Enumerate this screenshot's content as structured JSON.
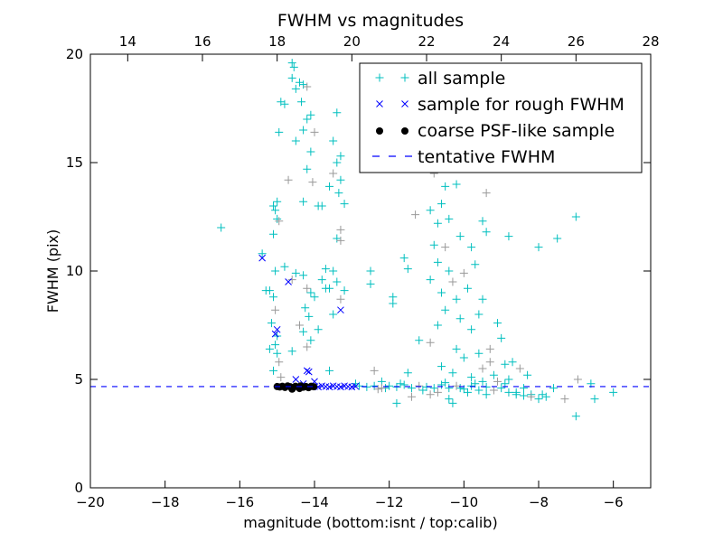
{
  "chart_data": {
    "type": "scatter",
    "title": "FWHM vs magnitudes",
    "xlabel": "magnitude (bottom:isnt / top:calib)",
    "ylabel": "FWHM (pix)",
    "xlim": [
      -20,
      -5
    ],
    "ylim": [
      0,
      20
    ],
    "top_xlim": [
      13,
      28
    ],
    "x_ticks": [
      -20,
      -18,
      -16,
      -14,
      -12,
      -10,
      -8,
      -6
    ],
    "x_tick_labels": [
      "−20",
      "−18",
      "−16",
      "−14",
      "−12",
      "−10",
      "−8",
      "−6"
    ],
    "top_x_ticks": [
      14,
      16,
      18,
      20,
      22,
      24,
      26,
      28
    ],
    "top_x_tick_labels": [
      "14",
      "16",
      "18",
      "20",
      "22",
      "24",
      "26",
      "28"
    ],
    "y_ticks": [
      0,
      5,
      10,
      15,
      20
    ],
    "y_tick_labels": [
      "0",
      "5",
      "10",
      "15",
      "20"
    ],
    "grid": false,
    "legend_position": "top-right",
    "colors": {
      "all": "#00bfbf",
      "rough": "#0000ff",
      "coarse": "#000000",
      "tentative": "#0000ff"
    },
    "series": [
      {
        "name": "all sample",
        "marker": "plus",
        "points": [
          [
            -15.1,
            13
          ],
          [
            -15.05,
            12.8
          ],
          [
            -15,
            12.4
          ],
          [
            -14.95,
            12.3
          ],
          [
            -15.1,
            11.7
          ],
          [
            -15.05,
            10
          ],
          [
            -15.2,
            9.1
          ],
          [
            -15.1,
            8.8
          ],
          [
            -15.05,
            8.2
          ],
          [
            -15.15,
            7.6
          ],
          [
            -15,
            7
          ],
          [
            -15.05,
            6.6
          ],
          [
            -15,
            6.2
          ],
          [
            -14.95,
            5.8
          ],
          [
            -15.1,
            5.4
          ],
          [
            -15.2,
            6.4
          ],
          [
            -15.3,
            9.1
          ],
          [
            -15.4,
            10.8
          ],
          [
            -14.9,
            5.1
          ],
          [
            -15,
            13.2
          ],
          [
            -14.9,
            17.8
          ],
          [
            -14.8,
            17.7
          ],
          [
            -14.95,
            16.4
          ],
          [
            -14.7,
            14.2
          ],
          [
            -14.6,
            19.6
          ],
          [
            -14.55,
            19.4
          ],
          [
            -14.4,
            18.7
          ],
          [
            -14.3,
            18.6
          ],
          [
            -14.2,
            18.5
          ],
          [
            -14.5,
            18.4
          ],
          [
            -14.35,
            17.8
          ],
          [
            -14.1,
            17.2
          ],
          [
            -14.2,
            17
          ],
          [
            -14,
            16.4
          ],
          [
            -14.3,
            16.5
          ],
          [
            -14.5,
            16
          ],
          [
            -14.1,
            15.5
          ],
          [
            -14.2,
            14.7
          ],
          [
            -14.05,
            14.1
          ],
          [
            -14.3,
            13.2
          ],
          [
            -13.9,
            13
          ],
          [
            -14.6,
            18.9
          ],
          [
            -14.3,
            9.8
          ],
          [
            -14.2,
            9.2
          ],
          [
            -14.1,
            9
          ],
          [
            -14,
            8.8
          ],
          [
            -14.25,
            8.3
          ],
          [
            -14.15,
            7.9
          ],
          [
            -14.4,
            7.5
          ],
          [
            -14.3,
            7.2
          ],
          [
            -13.9,
            7.3
          ],
          [
            -14.1,
            6.8
          ],
          [
            -14.5,
            9.9
          ],
          [
            -14.6,
            9.6
          ],
          [
            -14.8,
            10.2
          ],
          [
            -13.8,
            9.6
          ],
          [
            -13.7,
            9.2
          ],
          [
            -14.6,
            6.3
          ],
          [
            -14.2,
            6.5
          ],
          [
            -13.4,
            17.3
          ],
          [
            -13.5,
            16
          ],
          [
            -13.3,
            15.3
          ],
          [
            -13.4,
            15
          ],
          [
            -13.5,
            14.5
          ],
          [
            -13.3,
            14.2
          ],
          [
            -13.6,
            13.9
          ],
          [
            -13.35,
            13.6
          ],
          [
            -13.4,
            11.5
          ],
          [
            -13.3,
            11.4
          ],
          [
            -13.5,
            10
          ],
          [
            -13.4,
            9.5
          ],
          [
            -13.6,
            9.2
          ],
          [
            -13.2,
            9.1
          ],
          [
            -13.3,
            8.7
          ],
          [
            -13.5,
            8
          ],
          [
            -13.7,
            10.1
          ],
          [
            -13.8,
            13
          ],
          [
            -13.6,
            5.4
          ],
          [
            -13.3,
            11.9
          ],
          [
            -13.2,
            13.1
          ],
          [
            -12.5,
            10
          ],
          [
            -12.5,
            9.4
          ],
          [
            -16.5,
            12
          ],
          [
            -11.3,
            12.6
          ],
          [
            -11.5,
            10.1
          ],
          [
            -11.9,
            8.8
          ],
          [
            -11.9,
            8.5
          ],
          [
            -12.2,
            4.9
          ],
          [
            -12.4,
            5.4
          ],
          [
            -11.5,
            5.3
          ],
          [
            -11.8,
            3.9
          ],
          [
            -11.2,
            6.8
          ],
          [
            -11.6,
            10.6
          ],
          [
            -10.8,
            14.5
          ],
          [
            -10.6,
            13.1
          ],
          [
            -10.9,
            12.8
          ],
          [
            -10.7,
            12.2
          ],
          [
            -10.8,
            11.2
          ],
          [
            -10.5,
            11.1
          ],
          [
            -10.7,
            10.4
          ],
          [
            -10.4,
            10
          ],
          [
            -10.9,
            9.6
          ],
          [
            -10.6,
            9
          ],
          [
            -10.3,
            9.5
          ],
          [
            -10.2,
            14
          ],
          [
            -10.5,
            13.9
          ],
          [
            -10.4,
            12.4
          ],
          [
            -10.1,
            11.6
          ],
          [
            -10,
            9.9
          ],
          [
            -9.9,
            9.2
          ],
          [
            -10.2,
            8.7
          ],
          [
            -10.5,
            8.2
          ],
          [
            -10.7,
            7.5
          ],
          [
            -10.9,
            6.7
          ],
          [
            -10.1,
            7.8
          ],
          [
            -9.8,
            7.3
          ],
          [
            -9.6,
            8
          ],
          [
            -9.5,
            8.7
          ],
          [
            -9.4,
            13.6
          ],
          [
            -9.5,
            12.3
          ],
          [
            -9.4,
            11.8
          ],
          [
            -9.8,
            11.1
          ],
          [
            -9.7,
            10.3
          ],
          [
            -9.3,
            6.4
          ],
          [
            -9.1,
            7.6
          ],
          [
            -9,
            6.9
          ],
          [
            -8.9,
            5.7
          ],
          [
            -8.7,
            5.8
          ],
          [
            -8.5,
            5.5
          ],
          [
            -8.8,
            11.6
          ],
          [
            -8,
            11.1
          ],
          [
            -7.5,
            11.5
          ],
          [
            -7,
            12.5
          ],
          [
            -6.95,
            5
          ],
          [
            -7,
            3.3
          ],
          [
            -6.6,
            4.8
          ],
          [
            -6.5,
            4.1
          ],
          [
            -6,
            4.4
          ],
          [
            -7.3,
            4.1
          ],
          [
            -7.8,
            4.2
          ],
          [
            -8.2,
            4.3
          ],
          [
            -8,
            4.1
          ],
          [
            -9.2,
            5.2
          ],
          [
            -9.5,
            5.5
          ],
          [
            -9.8,
            5.1
          ],
          [
            -10,
            6
          ],
          [
            -10.3,
            5.3
          ],
          [
            -10.6,
            5.6
          ],
          [
            -10.9,
            4.3
          ],
          [
            -10.4,
            4.1
          ],
          [
            -10.1,
            4.6
          ],
          [
            -9.7,
            4.8
          ],
          [
            -9.4,
            4.3
          ],
          [
            -9.1,
            4.9
          ],
          [
            -8.8,
            5
          ],
          [
            -8.6,
            4.4
          ],
          [
            -8.4,
            4.6
          ],
          [
            -8.3,
            5.2
          ],
          [
            -9.3,
            5.8
          ],
          [
            -9.6,
            6.2
          ],
          [
            -10.2,
            6.4
          ],
          [
            -12.9,
            4.8
          ],
          [
            -12.1,
            4.6
          ],
          [
            -11.4,
            4.2
          ],
          [
            -10.3,
            3.9
          ],
          [
            -12.8,
            4.7
          ],
          [
            -12.6,
            4.65
          ],
          [
            -12.4,
            4.7
          ],
          [
            -12.2,
            4.6
          ],
          [
            -12,
            4.7
          ],
          [
            -11.8,
            4.65
          ],
          [
            -11.6,
            4.75
          ],
          [
            -11.4,
            4.6
          ],
          [
            -11.2,
            4.7
          ],
          [
            -11,
            4.65
          ],
          [
            -10.8,
            4.6
          ],
          [
            -10.6,
            4.75
          ],
          [
            -10.4,
            4.6
          ],
          [
            -10.2,
            4.7
          ],
          [
            -10,
            4.55
          ],
          [
            -9.8,
            4.7
          ],
          [
            -9.6,
            4.5
          ],
          [
            -9.4,
            4.65
          ],
          [
            -9.2,
            4.5
          ],
          [
            -9,
            4.6
          ],
          [
            -8.8,
            4.4
          ],
          [
            -8.6,
            4.3
          ],
          [
            -8.4,
            4.25
          ],
          [
            -8.2,
            4.2
          ],
          [
            -7.9,
            4.3
          ],
          [
            -7.6,
            4.6
          ],
          [
            -11.7,
            4.8
          ],
          [
            -11.1,
            4.5
          ],
          [
            -10.7,
            4.4
          ],
          [
            -10.5,
            4.85
          ],
          [
            -9.9,
            4.4
          ],
          [
            -9.5,
            4.9
          ],
          [
            -8.9,
            4.8
          ],
          [
            -12.3,
            4.55
          ]
        ]
      },
      {
        "name": "sample for rough FWHM",
        "marker": "x",
        "points": [
          [
            -15.4,
            10.6
          ],
          [
            -14.7,
            9.5
          ],
          [
            -15,
            7.3
          ],
          [
            -15.05,
            7.1
          ],
          [
            -13.3,
            8.2
          ],
          [
            -14.2,
            5.4
          ],
          [
            -14.15,
            5.35
          ],
          [
            -14.5,
            5
          ],
          [
            -14,
            4.9
          ],
          [
            -14.3,
            4.8
          ],
          [
            -14,
            4.67
          ],
          [
            -13.9,
            4.65
          ],
          [
            -13.8,
            4.7
          ],
          [
            -13.7,
            4.67
          ],
          [
            -13.6,
            4.65
          ],
          [
            -13.5,
            4.7
          ],
          [
            -13.4,
            4.67
          ],
          [
            -13.3,
            4.65
          ],
          [
            -13.2,
            4.7
          ],
          [
            -13.1,
            4.67
          ],
          [
            -13,
            4.65
          ],
          [
            -12.9,
            4.68
          ]
        ]
      },
      {
        "name": "coarse PSF-like sample",
        "marker": "circle",
        "points": [
          [
            -15,
            4.67
          ],
          [
            -14.93,
            4.65
          ],
          [
            -14.86,
            4.68
          ],
          [
            -14.79,
            4.63
          ],
          [
            -14.72,
            4.7
          ],
          [
            -14.65,
            4.66
          ],
          [
            -14.58,
            4.62
          ],
          [
            -14.51,
            4.68
          ],
          [
            -14.44,
            4.65
          ],
          [
            -14.37,
            4.7
          ],
          [
            -14.3,
            4.64
          ],
          [
            -14.23,
            4.67
          ],
          [
            -14.16,
            4.62
          ],
          [
            -14.09,
            4.68
          ],
          [
            -14.02,
            4.66
          ],
          [
            -14.6,
            4.55
          ],
          [
            -14.4,
            4.58
          ]
        ]
      },
      {
        "name": "tentative FWHM",
        "marker": "dashed-line",
        "value": 4.67
      }
    ]
  }
}
